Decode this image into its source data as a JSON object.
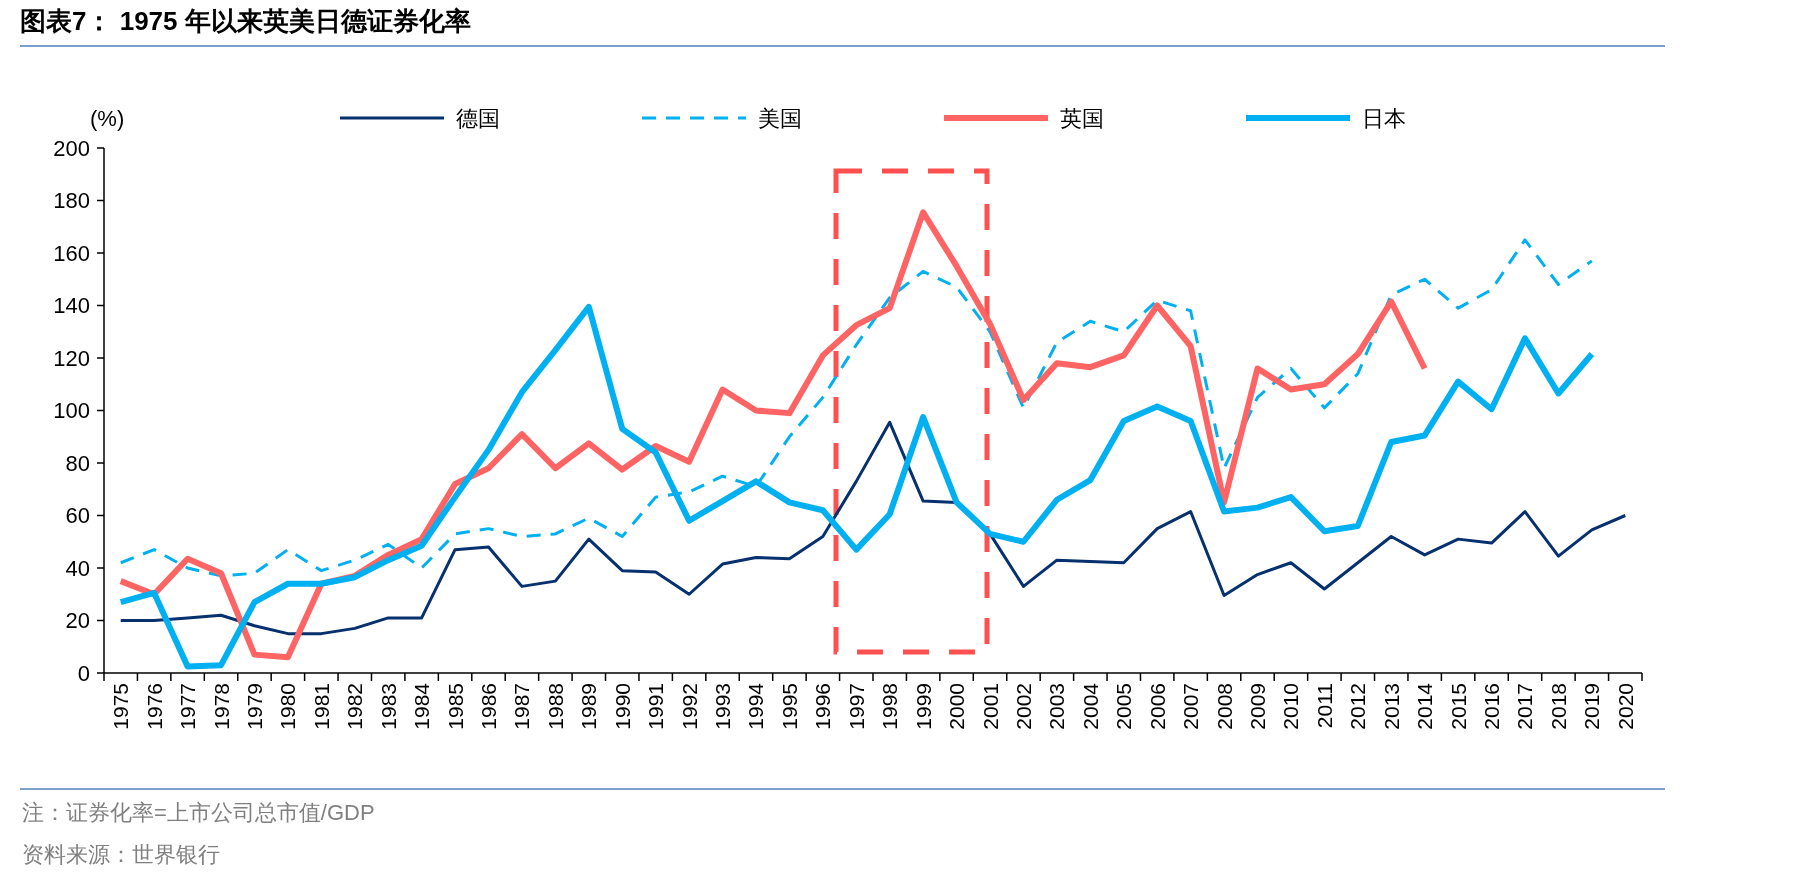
{
  "chart_data": {
    "type": "line",
    "title": "图表7：  1975 年以来英美日德证券化率",
    "ylabel": "(%)",
    "categories": [
      "1975",
      "1976",
      "1977",
      "1978",
      "1979",
      "1980",
      "1981",
      "1982",
      "1983",
      "1984",
      "1985",
      "1986",
      "1987",
      "1988",
      "1989",
      "1990",
      "1991",
      "1992",
      "1993",
      "1994",
      "1995",
      "1996",
      "1997",
      "1998",
      "1999",
      "2000",
      "2001",
      "2002",
      "2003",
      "2004",
      "2005",
      "2006",
      "2007",
      "2008",
      "2009",
      "2010",
      "2011",
      "2012",
      "2013",
      "2014",
      "2015",
      "2016",
      "2017",
      "2018",
      "2019",
      "2020"
    ],
    "series": [
      {
        "name": "德国",
        "color": "#06306e",
        "line_style": "solid",
        "values": [
          20,
          20,
          21,
          22,
          18,
          15,
          15,
          17,
          21,
          21,
          47,
          48,
          33,
          35,
          51,
          39,
          38.5,
          30,
          41.5,
          44,
          43.5,
          52,
          73,
          95.5,
          65.5,
          65,
          53,
          33,
          43,
          42.5,
          42,
          55,
          61.5,
          29.5,
          37.5,
          42,
          32,
          42,
          52,
          45,
          51,
          49.5,
          61.5,
          44.5,
          54.5,
          60
        ]
      },
      {
        "name": "美国",
        "color": "#00b0f0",
        "line_style": "dashed",
        "values": [
          42,
          47,
          40,
          37,
          38,
          47,
          39,
          43,
          49,
          40,
          53,
          55,
          52,
          53,
          59,
          52,
          67,
          69,
          75,
          71,
          90,
          105,
          125,
          143,
          153,
          147,
          130,
          101,
          126,
          134,
          130,
          142,
          138,
          78,
          105,
          116,
          101,
          114,
          144,
          150,
          139,
          146,
          165,
          148,
          157,
          null
        ]
      },
      {
        "name": "英国",
        "color": "#fe6464",
        "line_style": "solid",
        "values": [
          35,
          30,
          43.5,
          38,
          7,
          6,
          34,
          37,
          45,
          51,
          72,
          78,
          91,
          78,
          87.5,
          77.5,
          86.5,
          80.5,
          108,
          100,
          99,
          121,
          132.5,
          139,
          175.5,
          155,
          133,
          104,
          118,
          116.5,
          121,
          140,
          124.5,
          65,
          116,
          108,
          110,
          121.5,
          141.5,
          116,
          null,
          null,
          null,
          null,
          null,
          null
        ]
      },
      {
        "name": "日本",
        "color": "#00b0f0",
        "line_style": "solid",
        "values": [
          27,
          30.5,
          2.5,
          3,
          27,
          34,
          34,
          36.5,
          43,
          48.5,
          67,
          85,
          107,
          123,
          139.5,
          93,
          84,
          58,
          65.5,
          73,
          65,
          62,
          47,
          60.5,
          97.5,
          65,
          53,
          50,
          66,
          73.5,
          96,
          101.5,
          96,
          61.5,
          63,
          67,
          54,
          56,
          88,
          90.5,
          111,
          100.5,
          127.5,
          106.5,
          121.5,
          null
        ]
      }
    ],
    "ylim": [
      0,
      200
    ],
    "yticks": [
      0,
      20,
      40,
      60,
      80,
      100,
      120,
      140,
      160,
      180,
      200
    ],
    "legend": "top",
    "grid": false,
    "annotations": [
      "注：证券化率=上市公司总市值/GDP",
      "资料来源：世界银行"
    ]
  }
}
